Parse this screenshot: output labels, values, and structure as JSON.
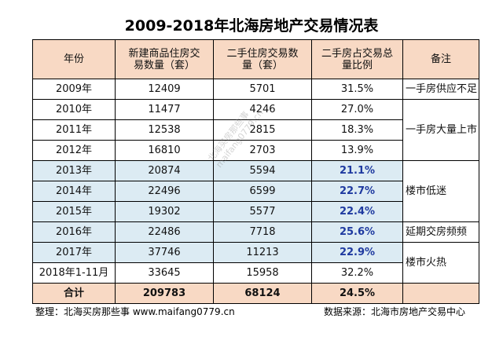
{
  "title": "2009-2018年北海房地产交易情况表",
  "headers": {
    "year": "年份",
    "new_houses": "新建商品住房交易数量（套）",
    "second_hand": "二手住房交易数量（套）",
    "ratio": "二手房占交易总量比例",
    "note": "备注"
  },
  "rows": [
    {
      "year": "2009年",
      "new": "12409",
      "second": "5701",
      "ratio": "31.5%"
    },
    {
      "year": "2010年",
      "new": "11477",
      "second": "4246",
      "ratio": "27.0%"
    },
    {
      "year": "2011年",
      "new": "12538",
      "second": "2815",
      "ratio": "18.3%"
    },
    {
      "year": "2012年",
      "new": "16810",
      "second": "2703",
      "ratio": "13.9%"
    },
    {
      "year": "2013年",
      "new": "20874",
      "second": "5594",
      "ratio": "21.1%"
    },
    {
      "year": "2014年",
      "new": "22496",
      "second": "6599",
      "ratio": "22.7%"
    },
    {
      "year": "2015年",
      "new": "19302",
      "second": "5577",
      "ratio": "22.4%"
    },
    {
      "year": "2016年",
      "new": "22486",
      "second": "7718",
      "ratio": "25.6%"
    },
    {
      "year": "2017年",
      "new": "37746",
      "second": "11213",
      "ratio": "22.9%"
    },
    {
      "year": "2018年1-11月",
      "new": "33645",
      "second": "15958",
      "ratio": "32.2%"
    }
  ],
  "notes": {
    "n2009": "一手房供应不足",
    "n2010_2012": "一手房大量上市",
    "n2013_2015": "楼市低迷",
    "n2016": "延期交房频频",
    "n2017_2018": "楼市火热"
  },
  "total": {
    "label": "合计",
    "new": "209783",
    "second": "68124",
    "ratio": "24.5%"
  },
  "footer": {
    "left": "整理：北海买房那些事 www.maifang0779.cn",
    "right": "数据来源：北海市房地产交易中心"
  },
  "watermark": {
    "line1": "北海买房那些事",
    "line2": "maifang0779.cn"
  },
  "colors": {
    "header_bg": "#f8d9c4",
    "highlight_bg": "#dcebf3",
    "highlight_text": "#1f3aa0"
  }
}
